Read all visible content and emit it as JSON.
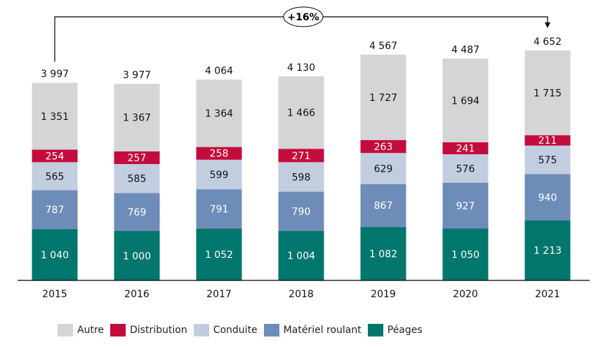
{
  "chart_data": {
    "type": "bar",
    "stacked": true,
    "title": "",
    "xlabel": "",
    "ylabel": "",
    "categories": [
      "2015",
      "2016",
      "2017",
      "2018",
      "2019",
      "2020",
      "2021"
    ],
    "totals": [
      3997,
      3977,
      4064,
      4130,
      4567,
      4487,
      4652
    ],
    "total_labels": [
      "3 997",
      "3 977",
      "4 064",
      "4 130",
      "4 567",
      "4 487",
      "4 652"
    ],
    "series": [
      {
        "name": "Péages",
        "color": "#00766c",
        "label_color": "#ffffff",
        "values": [
          1040,
          1000,
          1052,
          1004,
          1082,
          1050,
          1213
        ],
        "labels": [
          "1 040",
          "1 000",
          "1 052",
          "1 004",
          "1 082",
          "1 050",
          "1 213"
        ]
      },
      {
        "name": "Matériel roulant",
        "color": "#6e8cb8",
        "label_color": "#ffffff",
        "values": [
          787,
          769,
          791,
          790,
          867,
          927,
          940
        ],
        "labels": [
          "787",
          "769",
          "791",
          "790",
          "867",
          "927",
          "940"
        ]
      },
      {
        "name": "Conduite",
        "color": "#c3cde0",
        "label_color": "#111111",
        "values": [
          565,
          585,
          599,
          598,
          629,
          576,
          575
        ],
        "labels": [
          "565",
          "585",
          "599",
          "598",
          "629",
          "576",
          "575"
        ]
      },
      {
        "name": "Distribution",
        "color": "#c40c3c",
        "label_color": "#ffffff",
        "values": [
          254,
          257,
          258,
          271,
          263,
          241,
          211
        ],
        "labels": [
          "254",
          "257",
          "258",
          "271",
          "263",
          "241",
          "211"
        ]
      },
      {
        "name": "Autre",
        "color": "#d4d5d7",
        "label_color": "#111111",
        "values": [
          1351,
          1367,
          1364,
          1466,
          1727,
          1694,
          1715
        ],
        "labels": [
          "1 351",
          "1 367",
          "1 364",
          "1 466",
          "1 727",
          "1 694",
          "1 715"
        ]
      }
    ],
    "legend_order": [
      "Autre",
      "Distribution",
      "Conduite",
      "Matériel roulant",
      "Péages"
    ],
    "legend_position": "bottom",
    "annotation": {
      "text": "+16%",
      "from": "2015",
      "to": "2021"
    },
    "grid": false,
    "ylim": [
      0,
      4900
    ]
  }
}
